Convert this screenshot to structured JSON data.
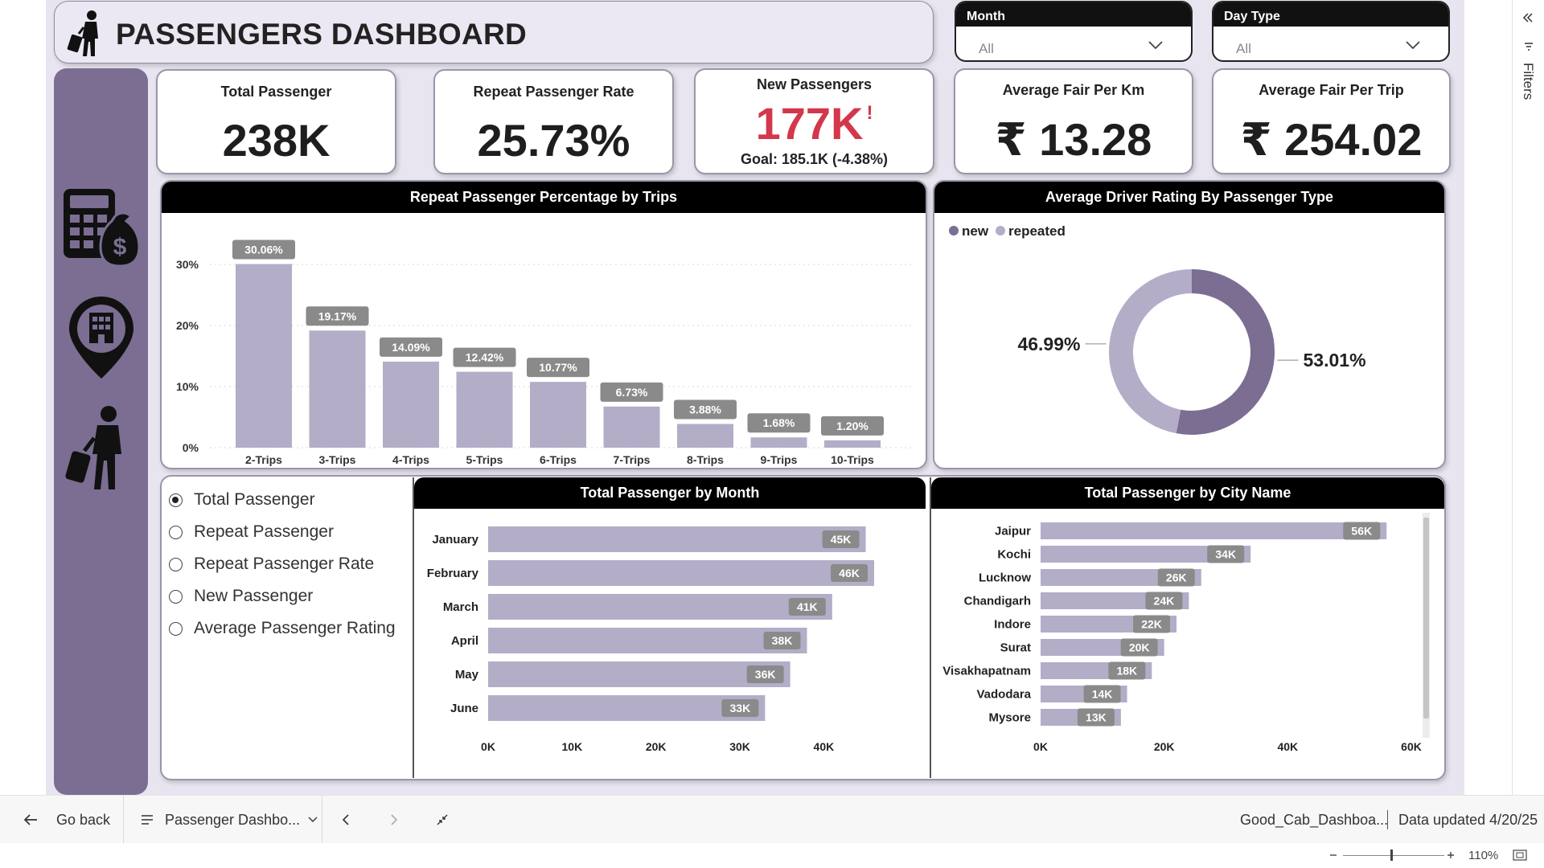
{
  "header": {
    "title": "PASSENGERS DASHBOARD"
  },
  "slicers": {
    "month": {
      "label": "Month",
      "value": "All"
    },
    "day_type": {
      "label": "Day Type",
      "value": "All"
    }
  },
  "kpis": [
    {
      "label": "Total Passenger",
      "value": "238K"
    },
    {
      "label": "Repeat Passenger Rate",
      "value": "25.73%"
    },
    {
      "label": "New Passengers",
      "value": "177K",
      "alert": "!",
      "goal": "Goal: 185.1K (-4.38%)"
    },
    {
      "label": "Average Fair Per Km",
      "value": "₹ 13.28"
    },
    {
      "label": "Average Fair Per Trip",
      "value": "₹ 254.02"
    }
  ],
  "colors": {
    "accent": "#7b6e92",
    "bar": "#b3adc8",
    "donut_new": "#7b6e92",
    "donut_repeated": "#b3adc8",
    "alert": "#d4374b"
  },
  "sidebar_icons": [
    "calculator-money-icon",
    "map-pin-building-icon",
    "traveler-icon"
  ],
  "metric_selector": {
    "options": [
      "Total Passenger",
      "Repeat Passenger",
      "Repeat Passenger Rate",
      "New Passenger",
      "Average Passenger Rating"
    ],
    "selected": "Total Passenger"
  },
  "chart_data": [
    {
      "type": "bar",
      "title": "Repeat Passenger Percentage by Trips",
      "categories": [
        "2-Trips",
        "3-Trips",
        "4-Trips",
        "5-Trips",
        "6-Trips",
        "7-Trips",
        "8-Trips",
        "9-Trips",
        "10-Trips"
      ],
      "values": [
        30.06,
        19.17,
        14.09,
        12.42,
        10.77,
        6.73,
        3.88,
        1.68,
        1.2
      ],
      "data_labels": [
        "30.06%",
        "19.17%",
        "14.09%",
        "12.42%",
        "10.77%",
        "6.73%",
        "3.88%",
        "1.68%",
        "1.20%"
      ],
      "yticks": [
        "0%",
        "10%",
        "20%",
        "30%"
      ],
      "ylim": [
        0,
        32
      ],
      "grid": true
    },
    {
      "type": "pie",
      "title": "Average Driver Rating By Passenger Type",
      "categories": [
        "new",
        "repeated"
      ],
      "values": [
        53.01,
        46.99
      ],
      "data_labels": [
        "53.01%",
        "46.99%"
      ],
      "legend": "top-left"
    },
    {
      "type": "bar",
      "orientation": "horizontal",
      "title": "Total Passenger by Month",
      "categories": [
        "January",
        "February",
        "March",
        "April",
        "May",
        "June"
      ],
      "values": [
        45,
        46,
        41,
        38,
        36,
        33
      ],
      "data_labels": [
        "45K",
        "46K",
        "41K",
        "38K",
        "36K",
        "33K"
      ],
      "xticks": [
        "0K",
        "10K",
        "20K",
        "30K",
        "40K"
      ],
      "xlim": [
        0,
        46
      ]
    },
    {
      "type": "bar",
      "orientation": "horizontal",
      "title": "Total Passenger by City Name",
      "categories": [
        "Jaipur",
        "Kochi",
        "Lucknow",
        "Chandigarh",
        "Indore",
        "Surat",
        "Visakhapatnam",
        "Vadodara",
        "Mysore"
      ],
      "values": [
        56,
        34,
        26,
        24,
        22,
        20,
        18,
        14,
        13
      ],
      "data_labels": [
        "56K",
        "34K",
        "26K",
        "24K",
        "22K",
        "20K",
        "18K",
        "14K",
        "13K"
      ],
      "xticks": [
        "0K",
        "20K",
        "40K",
        "60K"
      ],
      "xlim": [
        0,
        60
      ]
    }
  ],
  "bottombar": {
    "back_label": "Go back",
    "page_label": "Passenger Dashbo...",
    "report_name": "Good_Cab_Dashboa...",
    "data_updated": "Data updated 4/20/25"
  },
  "statusbar": {
    "zoom": "110%"
  },
  "filters_pane": {
    "label": "Filters"
  }
}
